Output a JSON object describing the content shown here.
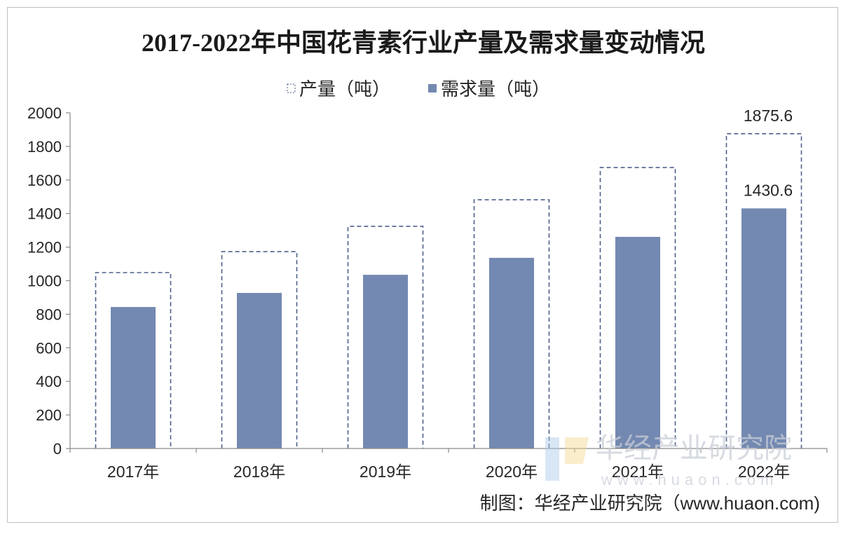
{
  "chart_data": {
    "type": "bar",
    "title": "2017-2022年中国花青素行业产量及需求量变动情况",
    "xlabel": "",
    "ylabel": "",
    "categories": [
      "2017年",
      "2018年",
      "2019年",
      "2020年",
      "2021年",
      "2022年"
    ],
    "series": [
      {
        "name": "产量（吨）",
        "values": [
          1048,
          1173,
          1324,
          1482,
          1674,
          1875.6
        ]
      },
      {
        "name": "需求量（吨）",
        "values": [
          843,
          927,
          1035,
          1136,
          1261,
          1430.6
        ]
      }
    ],
    "data_labels": [
      {
        "series_index": 0,
        "point_index": 5
      },
      {
        "series_index": 1,
        "point_index": 5
      }
    ],
    "ylim": [
      0,
      2000
    ],
    "yticks": [
      0,
      200,
      400,
      600,
      800,
      1000,
      1200,
      1400,
      1600,
      1800,
      2000
    ],
    "grid": false,
    "legend_position": "top"
  },
  "source": "制图：华经产业研究院（www.huaon.com)",
  "watermark": {
    "brand": "华经产业研究院",
    "url": "www.huaon.com"
  },
  "colors": {
    "production_outline": "#4e6089",
    "demand_fill": "#7389b1",
    "axis": "#8a8a8a",
    "border": "#c0c0c0",
    "watermark_blue": "#a9c9ea",
    "watermark_yellow": "#f3d98f"
  }
}
